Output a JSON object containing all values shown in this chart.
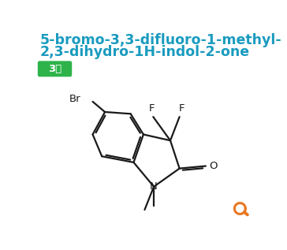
{
  "title_line1": "5-bromo-3,3-difluoro-1-methyl-",
  "title_line2": "2,3-dihydro-1H-indol-2-one",
  "title_color": "#1a9bbf",
  "title_fontsize": 12.5,
  "badge_text": "3级",
  "badge_bg": "#2db34a",
  "badge_text_color": "white",
  "badge_fontsize": 9.5,
  "search_icon_color": "#e87722",
  "bg_color": "white",
  "sc": "#1a1a1a",
  "lw": 1.6
}
